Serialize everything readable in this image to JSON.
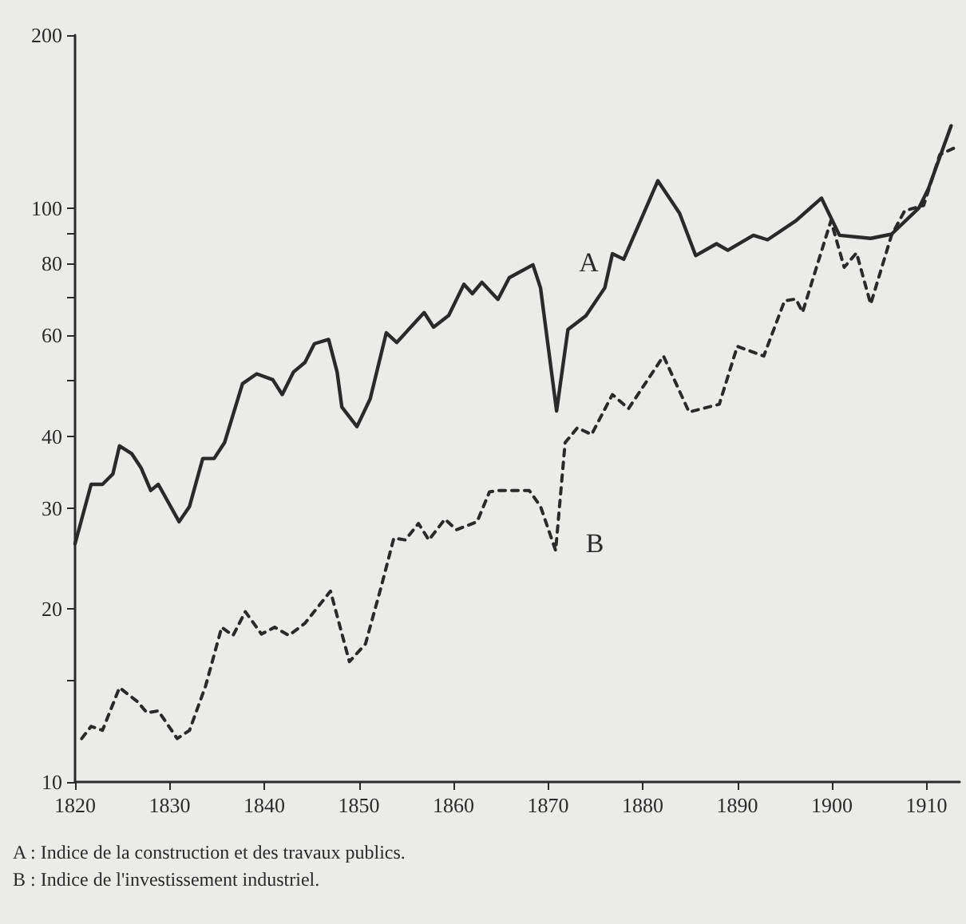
{
  "chart_data": {
    "type": "line",
    "xlim": [
      1820,
      1913.5
    ],
    "xticks": [
      1820,
      1830,
      1840,
      1850,
      1860,
      1870,
      1880,
      1890,
      1900,
      1910
    ],
    "ylim": [
      10,
      200
    ],
    "yticks": [
      10,
      {
        "value": 15,
        "label": null
      },
      20,
      30,
      40,
      {
        "value": 50,
        "label": null
      },
      60,
      {
        "value": 70,
        "label": null
      },
      80,
      {
        "value": 90,
        "label": null
      },
      100,
      200
    ],
    "log": "y",
    "grid": false,
    "marker": "none",
    "series": [
      {
        "name": "A",
        "color": "#2a2a2a",
        "line_style": "solid",
        "x": [
          1820,
          1821.7,
          1822.9,
          1824,
          1824.7,
          1826,
          1827,
          1828,
          1828.8,
          1831,
          1832.1,
          1833.5,
          1834.7,
          1835.8,
          1837.7,
          1839.2,
          1840.9,
          1841.9,
          1843.1,
          1844.3,
          1845.3,
          1846.8,
          1847.7,
          1848.2,
          1849.8,
          1851.2,
          1852.9,
          1854,
          1856.9,
          1857.9,
          1859.5,
          1861.1,
          1862,
          1863,
          1864.7,
          1865.9,
          1868.4,
          1869.2,
          1870.9,
          1872.1,
          1874,
          1876,
          1876.8,
          1878,
          1881.6,
          1883.9,
          1885.6,
          1887.8,
          1889,
          1891.7,
          1893.2,
          1896.2,
          1898.9,
          1900.8,
          1904.1,
          1906.3,
          1909.2,
          1910.2,
          1912.6
        ],
        "values": [
          26,
          33,
          33,
          34.4,
          38.5,
          37.3,
          35.2,
          32.2,
          33,
          28.4,
          30.2,
          36.6,
          36.6,
          39,
          49.4,
          51.4,
          50.2,
          47.3,
          51.8,
          53.8,
          58,
          59,
          51.8,
          45,
          41.6,
          46.5,
          60.6,
          58.3,
          65.7,
          62,
          65,
          73.6,
          70.9,
          74.2,
          69.3,
          75.6,
          79.6,
          72.6,
          44.3,
          61.4,
          64.9,
          72.6,
          83.2,
          81.4,
          111.5,
          97.9,
          82.6,
          86.6,
          84.4,
          89.6,
          88,
          95,
          104,
          89.6,
          88.5,
          90,
          100,
          108,
          139
        ]
      },
      {
        "name": "B",
        "color": "#2a2a2a",
        "line_style": "dashed",
        "x": [
          1820.7,
          1821.7,
          1822.9,
          1824.7,
          1826.6,
          1827.6,
          1828.8,
          1830.8,
          1832.1,
          1833.8,
          1835.5,
          1836.7,
          1838,
          1839.7,
          1841.1,
          1842.6,
          1844.3,
          1847,
          1847.8,
          1849,
          1850.7,
          1852.4,
          1853.7,
          1854.9,
          1856.3,
          1857.4,
          1859.1,
          1860.3,
          1862.5,
          1863.8,
          1864.7,
          1868,
          1869.2,
          1870.8,
          1871.8,
          1873.1,
          1874.6,
          1876.8,
          1878.5,
          1882.2,
          1884.9,
          1888.1,
          1890,
          1892.8,
          1895,
          1896.2,
          1896.9,
          1899.9,
          1901.3,
          1902.6,
          1904.1,
          1906.3,
          1907.7,
          1909.7,
          1911.4,
          1913.3
        ],
        "values": [
          11.9,
          12.5,
          12.3,
          14.6,
          13.8,
          13.2,
          13.3,
          11.9,
          12.3,
          14.7,
          18.6,
          18,
          19.8,
          18.1,
          18.6,
          18,
          18.9,
          21.5,
          19.2,
          16.2,
          17.4,
          22,
          26.6,
          26.4,
          28.2,
          26.4,
          28.7,
          27.5,
          28.4,
          32,
          32.2,
          32.2,
          30.2,
          25.3,
          39,
          41.4,
          40.3,
          47.3,
          44.7,
          55.2,
          44.1,
          45.5,
          57.4,
          55.2,
          68.9,
          69.4,
          65.8,
          95,
          78.8,
          83.5,
          68,
          89.6,
          98.9,
          101,
          123.8,
          128
        ]
      }
    ],
    "annotations": [
      "A : Indice de la construction et des travaux publics.",
      "B : Indice de l'investissement industriel."
    ]
  }
}
